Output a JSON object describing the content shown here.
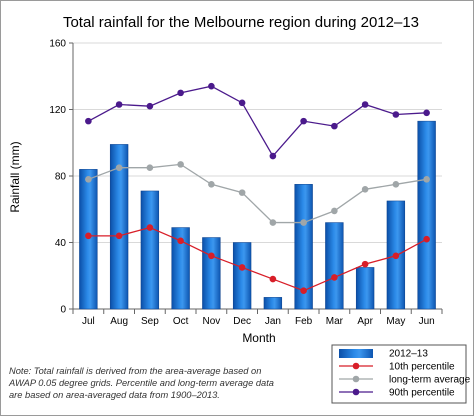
{
  "chart_data": {
    "type": "bar",
    "title": "Total rainfall for the Melbourne region during 2012–13",
    "xlabel": "Month",
    "ylabel": "Rainfall (mm)",
    "ylim": [
      0,
      160
    ],
    "yticks": [
      0,
      40,
      80,
      120,
      160
    ],
    "categories": [
      "Jul",
      "Aug",
      "Sep",
      "Oct",
      "Nov",
      "Dec",
      "Jan",
      "Feb",
      "Mar",
      "Apr",
      "May",
      "Jun"
    ],
    "grid": "horizontal",
    "legend_position": "bottom-right",
    "series": [
      {
        "name": "2012–13",
        "type": "bar",
        "color": "#1a6fd0",
        "values": [
          84,
          99,
          71,
          49,
          43,
          40,
          7,
          75,
          52,
          25,
          65,
          113
        ]
      },
      {
        "name": "10th percentile",
        "type": "line",
        "color": "#d81e28",
        "values": [
          44,
          44,
          49,
          41,
          32,
          25,
          18,
          11,
          19,
          27,
          32,
          42
        ]
      },
      {
        "name": "long-term average",
        "type": "line",
        "color": "#a0a6a8",
        "values": [
          78,
          85,
          85,
          87,
          75,
          70,
          52,
          52,
          59,
          72,
          75,
          78
        ]
      },
      {
        "name": "90th percentile",
        "type": "line",
        "color": "#4b1a8c",
        "values": [
          113,
          123,
          122,
          130,
          134,
          124,
          92,
          113,
          110,
          123,
          117,
          118
        ]
      }
    ]
  },
  "note": [
    "Note: Total rainfall is derived from the area-average based on",
    "AWAP 0.05 degree grids. Percentile and long-term average data",
    "are based on area-averaged data from 1900–2013."
  ]
}
